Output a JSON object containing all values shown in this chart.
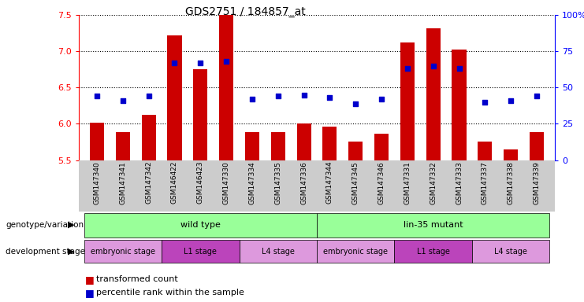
{
  "title": "GDS2751 / 184857_at",
  "samples": [
    "GSM147340",
    "GSM147341",
    "GSM147342",
    "GSM146422",
    "GSM146423",
    "GSM147330",
    "GSM147334",
    "GSM147335",
    "GSM147336",
    "GSM147344",
    "GSM147345",
    "GSM147346",
    "GSM147331",
    "GSM147332",
    "GSM147333",
    "GSM147337",
    "GSM147338",
    "GSM147339"
  ],
  "bar_values": [
    6.02,
    5.88,
    6.12,
    7.22,
    6.75,
    7.5,
    5.88,
    5.88,
    6.0,
    5.96,
    5.75,
    5.86,
    7.12,
    7.32,
    7.02,
    5.76,
    5.65,
    5.88
  ],
  "dot_values": [
    44,
    41,
    44,
    67,
    67,
    68,
    42,
    44,
    45,
    43,
    39,
    42,
    63,
    65,
    63,
    40,
    41,
    44
  ],
  "ylim_left": [
    5.5,
    7.5
  ],
  "ylim_right": [
    0,
    100
  ],
  "yticks_left": [
    5.5,
    6.0,
    6.5,
    7.0,
    7.5
  ],
  "yticks_right": [
    0,
    25,
    50,
    75,
    100
  ],
  "bar_color": "#cc0000",
  "dot_color": "#0000cc",
  "bar_baseline": 5.5,
  "wt_color": "#99ff99",
  "mut_color": "#99ff99",
  "stage_light_color": "#dd99dd",
  "stage_dark_color": "#bb44bb",
  "label_bg_color": "#cccccc",
  "background_color": "#ffffff",
  "grid_color": "#000000",
  "stages": [
    {
      "text": "embryonic stage",
      "start": 0,
      "end": 2,
      "light": true
    },
    {
      "text": "L1 stage",
      "start": 3,
      "end": 5,
      "light": false
    },
    {
      "text": "L4 stage",
      "start": 6,
      "end": 8,
      "light": true
    },
    {
      "text": "embryonic stage",
      "start": 9,
      "end": 11,
      "light": true
    },
    {
      "text": "L1 stage",
      "start": 12,
      "end": 14,
      "light": false
    },
    {
      "text": "L4 stage",
      "start": 15,
      "end": 17,
      "light": true
    }
  ]
}
